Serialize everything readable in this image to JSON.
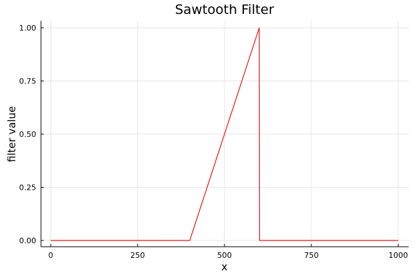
{
  "chart_data": {
    "type": "line",
    "title": "Sawtooth Filter",
    "xlabel": "x",
    "ylabel": "filter value",
    "xlim": [
      0,
      1000
    ],
    "ylim": [
      0,
      1
    ],
    "xticks": [
      0,
      250,
      500,
      750,
      1000
    ],
    "yticks": [
      0,
      0.25,
      0.5,
      0.75,
      1
    ],
    "xtick_labels": [
      "0",
      "250",
      "500",
      "750",
      "1000"
    ],
    "ytick_labels": [
      "0.00",
      "0.25",
      "0.50",
      "0.75",
      "1.00"
    ],
    "grid": true,
    "legend": false,
    "series": [
      {
        "color": "#e41a1c",
        "x": [
          0,
          400,
          600,
          601,
          1000
        ],
        "y": [
          0,
          0,
          1,
          0,
          0
        ]
      }
    ]
  }
}
